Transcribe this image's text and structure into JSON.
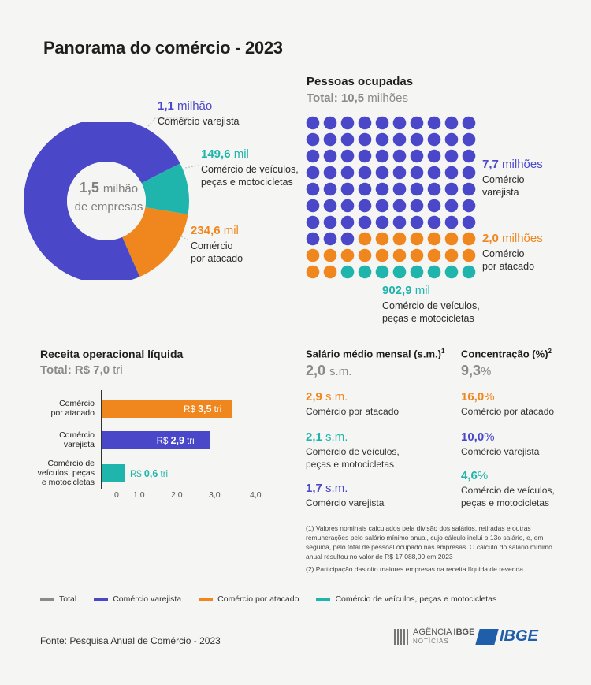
{
  "title": "Panorama do comércio - 2023",
  "colors": {
    "varejista": "#4a48c9",
    "atacado": "#f0871e",
    "veiculos": "#1fb5ac",
    "total": "#8a8a8a"
  },
  "donut": {
    "center_value": "1,5",
    "center_unit": "milhão",
    "center_line2": "de empresas",
    "items": [
      {
        "value": "1,1",
        "unit": "milhão",
        "label": "Comércio varejista"
      },
      {
        "value": "149,6",
        "unit": "mil",
        "label1": "Comércio de veículos,",
        "label2": "peças e motocicletas"
      },
      {
        "value": "234,6",
        "unit": "mil",
        "label1": "Comércio",
        "label2": "por atacado"
      }
    ]
  },
  "pessoas": {
    "heading": "Pessoas ocupadas",
    "total_label": "Total:",
    "total_value": "10,5",
    "total_unit": "milhões",
    "varejista": {
      "value": "7,7",
      "unit": "milhões",
      "label1": "Comércio",
      "label2": "varejista"
    },
    "atacado": {
      "value": "2,0",
      "unit": "milhões",
      "label1": "Comércio",
      "label2": "por atacado"
    },
    "veiculos": {
      "value": "902,9",
      "unit": "mil",
      "label1": "Comércio de veículos,",
      "label2": "peças e motocicletas"
    }
  },
  "receita": {
    "heading": "Receita operacional líquida",
    "total_label": "Total:",
    "total_value": "R$ 7,0",
    "total_unit": "tri",
    "bars": [
      {
        "label1": "Comércio",
        "label2": "por atacado",
        "label3": "",
        "prefix": "R$",
        "value_text": "3,5",
        "suffix": "tri"
      },
      {
        "label1": "Comércio",
        "label2": "varejista",
        "label3": "",
        "prefix": "R$",
        "value_text": "2,9",
        "suffix": "tri"
      },
      {
        "label1": "Comércio de",
        "label2": "veículos, peças",
        "label3": "e motocicletas",
        "prefix": "R$",
        "value_text": "0,6",
        "suffix": "tri"
      }
    ],
    "ticks": [
      "0",
      "1,0",
      "2,0",
      "3,0",
      "4,0"
    ]
  },
  "salario": {
    "heading": "Salário médio mensal (s.m.)",
    "sup": "1",
    "total_value": "2,0",
    "total_unit": "s.m.",
    "items": [
      {
        "value": "2,9",
        "unit": "s.m.",
        "label1": "Comércio por atacado",
        "label2": ""
      },
      {
        "value": "2,1",
        "unit": "s.m.",
        "label1": "Comércio de veículos,",
        "label2": "peças e motocicletas"
      },
      {
        "value": "1,7",
        "unit": "s.m.",
        "label1": "Comércio varejista",
        "label2": ""
      }
    ]
  },
  "concentracao": {
    "heading": "Concentração (%)",
    "sup": "2",
    "total_value": "9,3",
    "total_unit": "%",
    "items": [
      {
        "value": "16,0",
        "unit": "%",
        "label1": "Comércio por atacado",
        "label2": ""
      },
      {
        "value": "10,0",
        "unit": "%",
        "label1": "Comércio varejista",
        "label2": ""
      },
      {
        "value": "4,6",
        "unit": "%",
        "label1": "Comércio de veículos,",
        "label2": "peças e motocicletas"
      }
    ]
  },
  "notes": {
    "n1": "(1) Valores nominais calculados pela divisão dos salários, retiradas e outras remunerações pelo salário mínimo anual, cujo cálculo inclui o 13o salário, e, em seguida, pelo total de pessoal ocupado nas empresas. O cálculo do salário mínimo anual resultou no valor de R$ 17 088,00 em 2023",
    "n2": "(2) Participação das oito maiores empresas na receita líquida de revenda"
  },
  "legend": [
    "Total",
    "Comércio varejista",
    "Comércio por atacado",
    "Comércio de veículos, peças e motocicletas"
  ],
  "fonte": "Fonte: Pesquisa Anual de Comércio - 2023",
  "logos": {
    "agencia1": "AGÊNCIA",
    "agencia2": "IBGE",
    "agencia3": "NOTÍCIAS",
    "ibge": "IBGE"
  },
  "chart_data": [
    {
      "type": "pie",
      "title": "",
      "categories": [
        "Comércio varejista",
        "Comércio de veículos, peças e motocicletas",
        "Comércio por atacado"
      ],
      "values": [
        1100,
        149.6,
        234.6
      ],
      "unit": "mil empresas",
      "total": 1500
    },
    {
      "type": "waffle",
      "title": "Pessoas ocupadas",
      "categories": [
        "Comércio varejista",
        "Comércio por atacado",
        "Comércio de veículos, peças e motocicletas"
      ],
      "values": [
        7.7,
        2.0,
        0.9029
      ],
      "unit": "milhões",
      "dot_counts": [
        73,
        19,
        8
      ]
    },
    {
      "type": "bar",
      "orientation": "horizontal",
      "title": "Receita operacional líquida",
      "categories": [
        "Comércio por atacado",
        "Comércio varejista",
        "Comércio de veículos, peças e motocicletas"
      ],
      "values": [
        3.5,
        2.9,
        0.6
      ],
      "unit": "R$ tri",
      "xlim": [
        0,
        4
      ]
    }
  ]
}
